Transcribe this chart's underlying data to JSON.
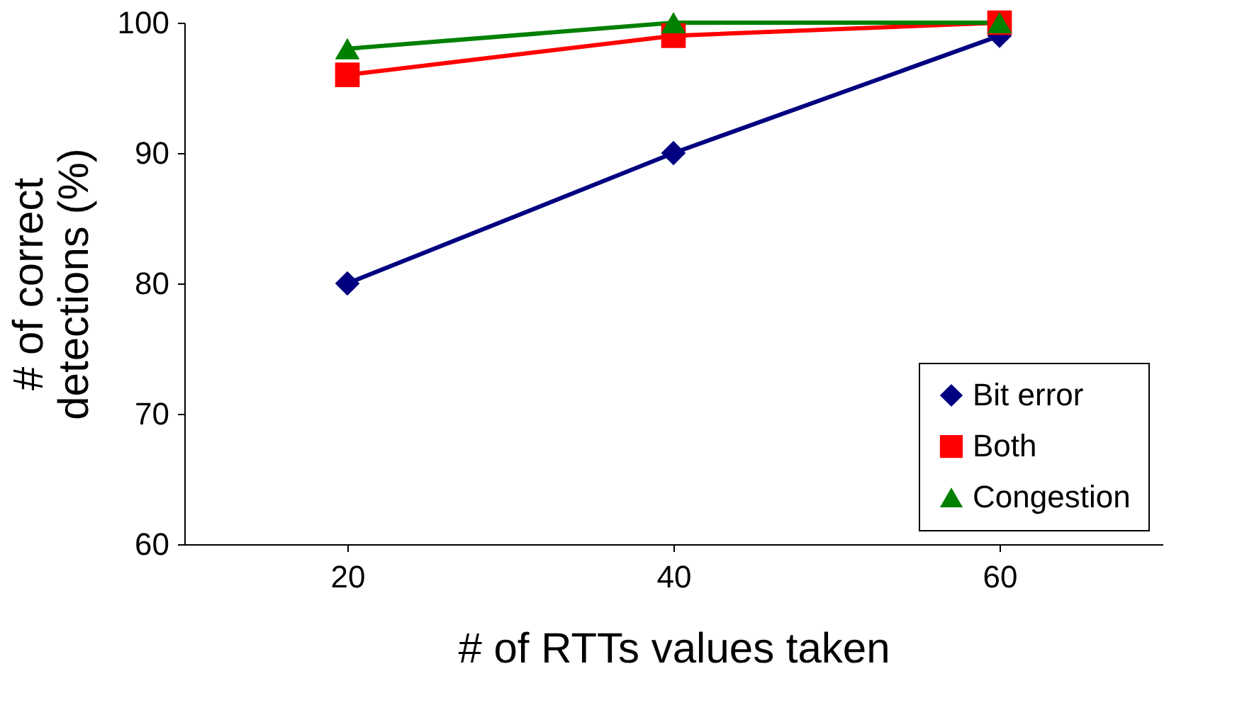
{
  "chart_data": {
    "type": "line",
    "xlabel": "# of RTTs values taken",
    "ylabel": "# of correct\ndetections (%)",
    "categories": [
      "20",
      "40",
      "60"
    ],
    "series": [
      {
        "name": "Bit error",
        "color": "#000080",
        "marker": "diamond",
        "values": [
          80,
          90,
          99
        ]
      },
      {
        "name": "Both",
        "color": "#ff0000",
        "marker": "square",
        "values": [
          96,
          99,
          100
        ]
      },
      {
        "name": "Congestion",
        "color": "#008000",
        "marker": "triangle",
        "values": [
          98,
          100,
          100
        ]
      }
    ],
    "ylim": [
      60,
      100
    ],
    "yticks": [
      60,
      70,
      80,
      90,
      100
    ],
    "grid": false,
    "legend": "bottom right",
    "line_style": "solid"
  }
}
